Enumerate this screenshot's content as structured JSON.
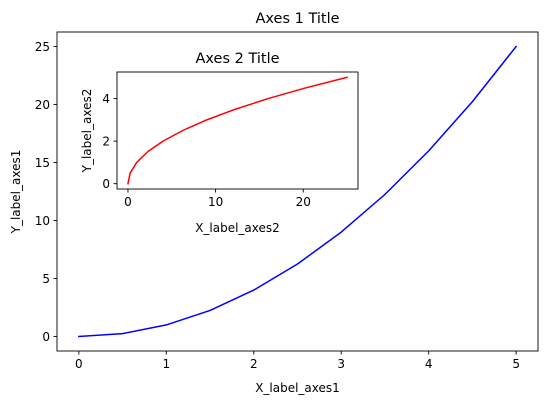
{
  "chart_data": [
    {
      "type": "line",
      "title": "Axes 1 Title",
      "xlabel": "X_label_axes1",
      "ylabel": "Y_label_axes1",
      "xlim": [
        -0.25,
        5.25
      ],
      "ylim": [
        -1.25,
        26.25
      ],
      "xticks": [
        0,
        1,
        2,
        3,
        4,
        5
      ],
      "yticks": [
        0,
        5,
        10,
        15,
        20,
        25
      ],
      "grid": false,
      "series": [
        {
          "color": "#0000ff",
          "x": [
            0,
            0.5,
            1,
            1.5,
            2,
            2.5,
            3,
            3.5,
            4,
            4.5,
            5
          ],
          "y": [
            0,
            0.25,
            1,
            2.25,
            4,
            6.25,
            9,
            12.25,
            16,
            20.25,
            25
          ]
        }
      ]
    },
    {
      "type": "line",
      "title": "Axes 2 Title",
      "xlabel": "X_label_axes2",
      "ylabel": "Y_label_axes2",
      "xlim": [
        -1.25,
        26.25
      ],
      "ylim": [
        -0.25,
        5.25
      ],
      "xticks": [
        0,
        10,
        20
      ],
      "yticks": [
        0,
        2,
        4
      ],
      "grid": false,
      "series": [
        {
          "color": "#ff0000",
          "x": [
            0,
            0.25,
            1,
            2.25,
            4,
            6.25,
            9,
            12.25,
            16,
            20.25,
            25
          ],
          "y": [
            0,
            0.5,
            1,
            1.5,
            2,
            2.5,
            3,
            3.5,
            4,
            4.5,
            5
          ]
        }
      ]
    }
  ]
}
